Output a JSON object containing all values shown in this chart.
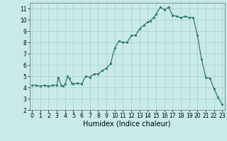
{
  "x": [
    0,
    0.5,
    1,
    1.5,
    2,
    2.5,
    3,
    3.2,
    3.5,
    3.8,
    4,
    4.3,
    4.5,
    4.8,
    5,
    5.5,
    6,
    6.5,
    7,
    7.5,
    8,
    8.5,
    9,
    9.5,
    10,
    10.5,
    11,
    11.5,
    12,
    12.5,
    13,
    13.5,
    14,
    14.3,
    14.7,
    15,
    15.5,
    16,
    16.5,
    17,
    17.5,
    18,
    18.5,
    19,
    19.5,
    20,
    20.5,
    21,
    21.5,
    22,
    22.5,
    23
  ],
  "y": [
    4.2,
    4.2,
    4.1,
    4.2,
    4.1,
    4.2,
    4.2,
    4.9,
    4.2,
    4.1,
    4.3,
    5.0,
    4.8,
    4.4,
    4.3,
    4.4,
    4.3,
    5.0,
    4.9,
    5.2,
    5.2,
    5.5,
    5.7,
    6.1,
    7.5,
    8.1,
    8.0,
    8.0,
    8.6,
    8.6,
    9.2,
    9.5,
    9.8,
    9.9,
    10.2,
    10.5,
    11.1,
    10.9,
    11.1,
    10.4,
    10.3,
    10.2,
    10.3,
    10.2,
    10.2,
    8.6,
    6.5,
    4.9,
    4.8,
    3.9,
    3.1,
    2.5
  ],
  "line_color": "#2d7a6a",
  "marker_color": "#2d7a6a",
  "bg_color": "#c8eaea",
  "grid_color": "#a8cccc",
  "xlabel": "Humidex (Indice chaleur)",
  "ylim": [
    2,
    11.5
  ],
  "xlim": [
    -0.3,
    23.3
  ],
  "yticks": [
    2,
    3,
    4,
    5,
    6,
    7,
    8,
    9,
    10,
    11
  ],
  "xticks": [
    0,
    1,
    2,
    3,
    4,
    5,
    6,
    7,
    8,
    9,
    10,
    11,
    12,
    13,
    14,
    15,
    16,
    17,
    18,
    19,
    20,
    21,
    22,
    23
  ],
  "tick_fontsize": 5.5,
  "xlabel_fontsize": 7
}
